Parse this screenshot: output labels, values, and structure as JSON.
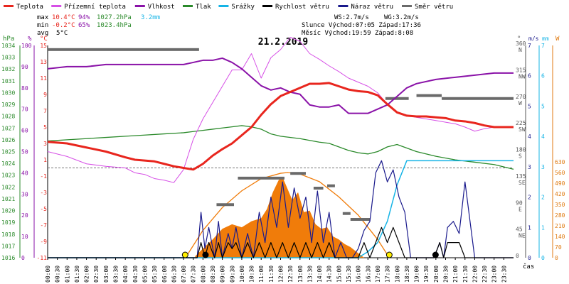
{
  "chart_data": {
    "type": "line",
    "title": "21.2.2019",
    "legend": [
      {
        "label": "Teplota",
        "color": "#e8261e"
      },
      {
        "label": "Přízemní teplota",
        "color": "#d64fe6"
      },
      {
        "label": "Vlhkost",
        "color": "#8a12a8"
      },
      {
        "label": "Tlak",
        "color": "#2b8a2b"
      },
      {
        "label": "Srážky",
        "color": "#16b4e6"
      },
      {
        "label": "Rychlost větru",
        "color": "#000000"
      },
      {
        "label": "Náraz větru",
        "color": "#1a1a8c"
      },
      {
        "label": "Směr větru",
        "color": "#6a6a6a"
      }
    ],
    "summary": {
      "max": {
        "label": "max",
        "temp": "10.4°C",
        "hum": "94%",
        "press": "1027.2hPa",
        "rain": "3.2mm"
      },
      "min": {
        "label": "min",
        "temp": "-0.2°C",
        "hum": "65%",
        "press": "1023.4hPa"
      },
      "avg": {
        "label": "avg",
        "temp": "5°C"
      },
      "wind_ws": "WS:2.7m/s",
      "wind_wg": "WG:3.2m/s",
      "sun": "Slunce Východ:07:05  Západ:17:36",
      "moon": "Měsíc  Východ:19:59  Západ:8:08"
    },
    "axes": {
      "hpa": {
        "unit": "hPa",
        "ticks": [
          "1034",
          "1033",
          "1032",
          "1031",
          "1030",
          "1029",
          "1028",
          "1027",
          "1026",
          "1025",
          "1024",
          "1023",
          "1022",
          "1021",
          "1020",
          "1019",
          "1018",
          "1017",
          "1016"
        ],
        "range": [
          1016,
          1034
        ]
      },
      "percent": {
        "unit": "%",
        "ticks": [
          "100",
          "90",
          "80",
          "70",
          "60",
          "50",
          "40",
          "30",
          "20",
          "10",
          "0"
        ],
        "range": [
          0,
          100
        ]
      },
      "celsius": {
        "unit": "°C",
        "ticks": [
          "15",
          "13",
          "11",
          "9",
          "7",
          "5",
          "3",
          "1",
          "-1",
          "-3",
          "-5",
          "-7",
          "-9",
          "-11"
        ],
        "range": [
          -11,
          15
        ]
      },
      "direction": {
        "unit": "°",
        "ticks": [
          {
            "deg": "360",
            "dir": "N"
          },
          {
            "deg": "315",
            "dir": "NW"
          },
          {
            "deg": "270",
            "dir": "W"
          },
          {
            "deg": "225",
            "dir": "SW"
          },
          {
            "deg": "180",
            "dir": "S"
          },
          {
            "deg": "135",
            "dir": "SE"
          },
          {
            "deg": "90",
            "dir": "E"
          },
          {
            "deg": "45",
            "dir": "NE"
          },
          {
            "deg": "0",
            "dir": ""
          }
        ],
        "range": [
          0,
          360
        ]
      },
      "wind": {
        "unit": "m/s",
        "ticks": [
          "7",
          "6",
          "5",
          "4",
          "3",
          "2",
          "1",
          "0"
        ],
        "range": [
          0,
          7
        ]
      },
      "rain": {
        "unit": "mm",
        "ticks": [
          "7",
          "6",
          "5",
          "4",
          "3",
          "2",
          "1",
          "0"
        ],
        "range": [
          0,
          7
        ]
      },
      "solar": {
        "unit": "W",
        "ticks": [
          "630",
          "560",
          "490",
          "420",
          "350",
          "280",
          "210",
          "140",
          "70",
          "0"
        ],
        "range": [
          0,
          630
        ]
      },
      "time": {
        "unit": "čas",
        "ticks": [
          "00:00",
          "00:30",
          "01:00",
          "01:30",
          "02:00",
          "02:30",
          "03:00",
          "03:30",
          "04:00",
          "04:30",
          "05:00",
          "05:30",
          "06:00",
          "06:30",
          "07:00",
          "07:30",
          "08:00",
          "08:30",
          "09:00",
          "09:30",
          "10:00",
          "10:30",
          "11:00",
          "11:30",
          "12:00",
          "12:30",
          "13:00",
          "13:30",
          "14:00",
          "14:30",
          "15:00",
          "15:30",
          "16:00",
          "16:30",
          "17:00",
          "17:30",
          "18:00",
          "18:30",
          "19:00",
          "19:30",
          "20:00",
          "20:30",
          "21:00",
          "21:30",
          "22:00",
          "22:30",
          "23:00",
          "23:30"
        ],
        "range": [
          0,
          24
        ]
      }
    },
    "series": [
      {
        "name": "Teplota",
        "unit": "°C",
        "x": [
          0,
          1,
          2,
          3,
          4,
          4.5,
          5,
          5.5,
          6,
          6.5,
          7,
          7.5,
          8,
          8.5,
          9,
          9.5,
          10,
          10.5,
          11,
          11.5,
          12,
          12.5,
          13,
          13.5,
          14,
          14.5,
          15,
          15.5,
          16,
          16.5,
          17,
          17.5,
          18,
          18.5,
          19,
          19.5,
          20,
          20.5,
          21,
          21.5,
          22,
          22.5,
          23,
          24
        ],
        "values": [
          3.2,
          3.0,
          2.5,
          2.0,
          1.3,
          1.0,
          0.9,
          0.8,
          0.5,
          0.2,
          0.0,
          -0.2,
          0.5,
          1.5,
          2.3,
          3.0,
          4.0,
          5.0,
          6.5,
          7.8,
          8.8,
          9.3,
          9.8,
          10.3,
          10.3,
          10.4,
          10.0,
          9.6,
          9.4,
          9.3,
          8.9,
          7.8,
          6.8,
          6.4,
          6.3,
          6.3,
          6.2,
          6.1,
          5.8,
          5.7,
          5.5,
          5.2,
          5.0,
          5.0
        ]
      },
      {
        "name": "Přízemní teplota",
        "unit": "°C",
        "x": [
          0,
          1,
          2,
          3,
          4,
          4.5,
          5,
          5.5,
          6,
          6.5,
          7,
          7.5,
          8,
          8.5,
          9,
          9.5,
          10,
          10.5,
          11,
          11.5,
          12,
          12.5,
          13,
          13.5,
          14,
          14.5,
          15,
          15.5,
          16,
          16.5,
          17,
          17.5,
          18,
          18.5,
          19,
          19.5,
          20,
          20.5,
          21,
          21.5,
          22,
          22.5,
          23,
          24
        ],
        "values": [
          2.0,
          1.4,
          0.5,
          0.2,
          0.0,
          -0.6,
          -0.8,
          -1.3,
          -1.5,
          -1.8,
          -0.2,
          3.5,
          6.0,
          8.0,
          10.0,
          12.0,
          12.0,
          14.0,
          11.0,
          13.5,
          14.5,
          16.0,
          15.5,
          14.0,
          13.3,
          12.5,
          11.8,
          11.0,
          10.5,
          10.0,
          9.2,
          7.8,
          6.8,
          6.4,
          6.2,
          6.0,
          5.8,
          5.6,
          5.4,
          5.0,
          4.5,
          4.8,
          5.0,
          5.0
        ]
      },
      {
        "name": "Vlhkost",
        "unit": "%",
        "x": [
          0,
          1,
          2,
          3,
          4,
          5,
          6,
          7,
          7.5,
          8,
          8.5,
          9,
          9.5,
          10,
          10.5,
          11,
          11.5,
          12,
          12.5,
          13,
          13.5,
          14,
          14.5,
          15,
          15.5,
          16,
          16.5,
          17,
          17.5,
          18,
          18.5,
          19,
          20,
          21,
          22,
          23,
          24
        ],
        "values": [
          89,
          90,
          90,
          91,
          91,
          91,
          91,
          91,
          92,
          93,
          93,
          94,
          92,
          89,
          85,
          81,
          79,
          80,
          78,
          77,
          72,
          71,
          71,
          72,
          68,
          68,
          68,
          70,
          72,
          76,
          80,
          82,
          84,
          85,
          86,
          87,
          87
        ]
      },
      {
        "name": "Tlak",
        "unit": "hPa",
        "x": [
          0,
          1,
          2,
          3,
          4,
          5,
          6,
          7,
          7.5,
          8,
          8.5,
          9,
          9.5,
          10,
          10.5,
          11,
          11.5,
          12,
          13,
          14,
          14.5,
          15,
          15.5,
          16,
          16.5,
          17,
          17.5,
          18,
          18.5,
          19,
          20,
          21,
          22,
          23,
          24
        ],
        "values": [
          1025.9,
          1026.0,
          1026.1,
          1026.2,
          1026.3,
          1026.4,
          1026.5,
          1026.6,
          1026.7,
          1026.8,
          1026.9,
          1027.0,
          1027.1,
          1027.2,
          1027.1,
          1026.9,
          1026.5,
          1026.3,
          1026.1,
          1025.8,
          1025.7,
          1025.4,
          1025.1,
          1024.9,
          1024.8,
          1025.0,
          1025.4,
          1025.6,
          1025.3,
          1025.0,
          1024.6,
          1024.3,
          1024.1,
          1023.9,
          1023.5
        ]
      },
      {
        "name": "Srážky",
        "unit": "mm",
        "x": [
          0,
          15,
          16,
          16.5,
          17,
          17.5,
          18,
          18.5,
          19,
          24
        ],
        "values": [
          0,
          0,
          0,
          0.2,
          0.5,
          1.2,
          2.4,
          3.2,
          3.2,
          3.2
        ]
      },
      {
        "name": "Rychlost větru",
        "unit": "m/s",
        "x": [
          0,
          7.7,
          7.9,
          8.1,
          8.3,
          8.6,
          8.8,
          9.0,
          9.3,
          9.5,
          9.7,
          10,
          10.3,
          10.6,
          10.9,
          11.2,
          11.5,
          11.8,
          12.1,
          12.4,
          12.7,
          13.0,
          13.3,
          13.6,
          13.9,
          14.2,
          14.5,
          14.8,
          15.1,
          15.4,
          15.7,
          16,
          16.3,
          16.6,
          16.9,
          17.2,
          17.5,
          17.8,
          18.1,
          18.4,
          18.7,
          19,
          19.3,
          19.6,
          19.9,
          20.2,
          20.4,
          20.6,
          20.9,
          21.2,
          21.5,
          22,
          24
        ],
        "values": [
          0,
          0,
          0.5,
          0,
          0.5,
          0,
          0.5,
          0,
          0.5,
          0.3,
          0.5,
          0,
          0.5,
          0,
          0.5,
          0,
          0.5,
          0,
          0.5,
          0,
          0.5,
          0,
          0.5,
          0,
          0.5,
          0,
          0.5,
          0,
          0,
          0,
          0,
          0,
          0.5,
          0,
          0.5,
          1.0,
          0.5,
          1.0,
          0.5,
          0,
          0,
          0,
          0,
          0,
          0,
          0.5,
          0,
          0.5,
          0.5,
          0.5,
          0,
          0,
          0
        ]
      },
      {
        "name": "Náraz větru",
        "unit": "m/s",
        "x": [
          0,
          7.7,
          7.9,
          8.1,
          8.3,
          8.6,
          8.8,
          9.0,
          9.3,
          9.5,
          9.7,
          10,
          10.3,
          10.6,
          10.9,
          11.2,
          11.5,
          11.8,
          12.1,
          12.4,
          12.7,
          13.0,
          13.3,
          13.6,
          13.9,
          14.2,
          14.5,
          14.8,
          15.1,
          15.4,
          15.7,
          16,
          16.3,
          16.6,
          16.9,
          17.2,
          17.5,
          17.8,
          18.1,
          18.4,
          18.7,
          19,
          19.3,
          19.6,
          19.9,
          20.2,
          20.4,
          20.6,
          20.9,
          21.2,
          21.5,
          22,
          24
        ],
        "values": [
          0,
          0,
          1.5,
          0.3,
          1.0,
          0,
          1.2,
          0,
          0.8,
          0.3,
          1.0,
          0,
          0.8,
          0,
          1.5,
          0.5,
          2.0,
          1.0,
          2.5,
          1.0,
          2.3,
          1.3,
          2.0,
          0.5,
          2.2,
          0.5,
          1.5,
          0,
          0.5,
          0,
          0,
          0.3,
          0.9,
          1.2,
          2.8,
          3.2,
          2.5,
          2.9,
          2.0,
          1.5,
          0,
          0,
          0,
          0,
          0,
          0.5,
          0,
          1.0,
          1.2,
          0.8,
          2.5,
          0,
          0
        ]
      },
      {
        "name": "Směr větru",
        "unit": "°",
        "segments": [
          {
            "from": 0,
            "to": 7.8,
            "value": 353
          },
          {
            "from": 8.7,
            "to": 9.6,
            "value": 90
          },
          {
            "from": 9.8,
            "to": 12.2,
            "value": 135
          },
          {
            "from": 12.5,
            "to": 13.3,
            "value": 143
          },
          {
            "from": 13.7,
            "to": 14.2,
            "value": 118
          },
          {
            "from": 14.4,
            "to": 14.8,
            "value": 122
          },
          {
            "from": 15.2,
            "to": 15.6,
            "value": 75
          },
          {
            "from": 15.6,
            "to": 16.6,
            "value": 65
          },
          {
            "from": 17.4,
            "to": 18.6,
            "value": 270
          },
          {
            "from": 19.0,
            "to": 20.3,
            "value": 275
          },
          {
            "from": 20.3,
            "to": 24,
            "value": 270
          }
        ]
      },
      {
        "name": "Sluneční záření",
        "unit": "W",
        "x": [
          7.1,
          8,
          9,
          10,
          11,
          12,
          12.36,
          13,
          14,
          15,
          16,
          17,
          17.6
        ],
        "values": [
          0,
          180,
          330,
          440,
          520,
          555,
          560,
          550,
          500,
          400,
          280,
          120,
          0
        ]
      }
    ],
    "solar_measured": {
      "x": [
        7.6,
        8,
        8.5,
        9,
        9.5,
        10,
        10.5,
        11,
        11.3,
        11.6,
        11.9,
        12.1,
        12.3,
        12.6,
        12.9,
        13.2,
        13.5,
        13.8,
        14.1,
        14.4,
        14.7,
        15,
        15.3,
        15.6,
        16,
        16.3
      ],
      "values": [
        10,
        60,
        120,
        190,
        220,
        200,
        240,
        260,
        320,
        430,
        510,
        530,
        470,
        380,
        430,
        300,
        310,
        220,
        190,
        200,
        140,
        120,
        90,
        70,
        30,
        0
      ]
    },
    "sun_markers": {
      "sunrise": 7.083,
      "sunset": 17.6
    },
    "moon_markers": {
      "moonset": 8.133,
      "moonrise": 19.983
    }
  }
}
